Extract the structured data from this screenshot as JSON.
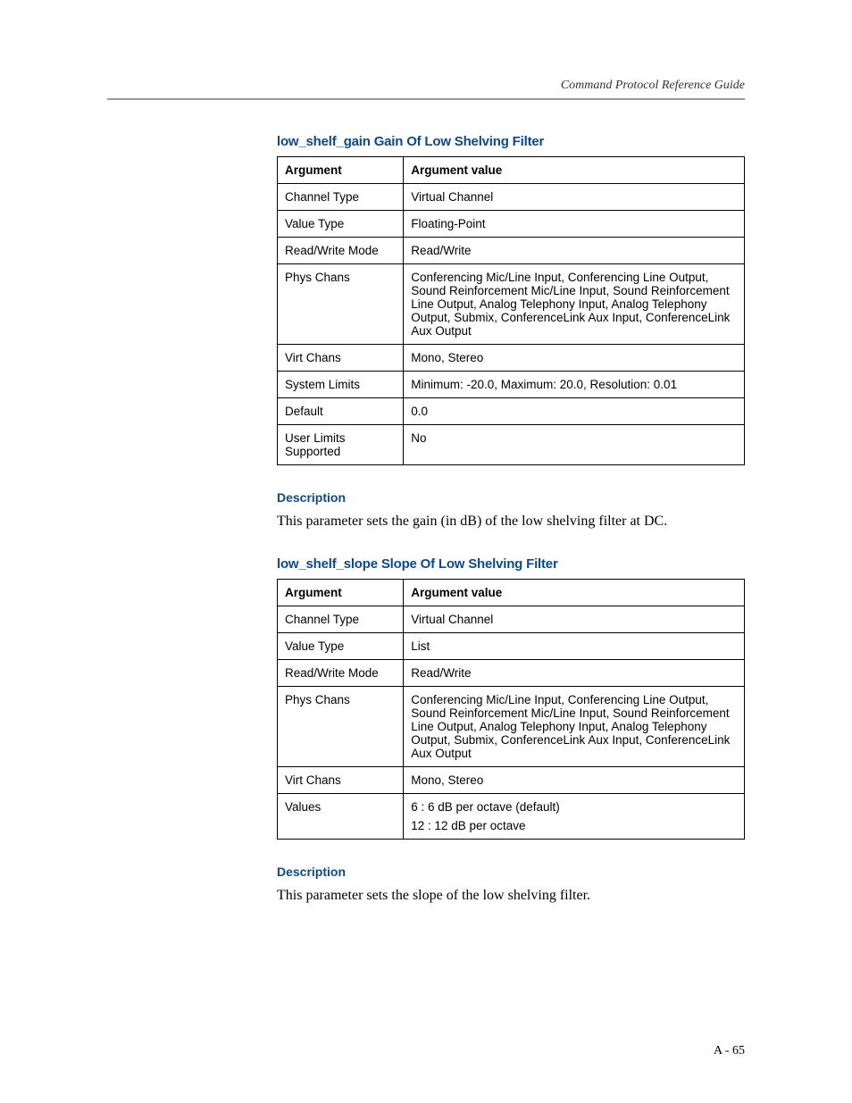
{
  "meta": {
    "header": "Command Protocol Reference Guide",
    "page_number": "A - 65"
  },
  "colors": {
    "heading": "#0b4a8a",
    "rule": "#999999",
    "text": "#000000"
  },
  "section1": {
    "title": "low_shelf_gain Gain Of Low Shelving Filter",
    "header_col1": "Argument",
    "header_col2": "Argument value",
    "rows": {
      "r0": {
        "k": "Channel Type",
        "v": "Virtual Channel"
      },
      "r1": {
        "k": "Value Type",
        "v": "Floating-Point"
      },
      "r2": {
        "k": "Read/Write Mode",
        "v": "Read/Write"
      },
      "r3": {
        "k": "Phys Chans",
        "v": "Conferencing Mic/Line Input, Conferencing Line Output, Sound Reinforcement Mic/Line Input, Sound Reinforcement Line Output, Analog Telephony Input, Analog Telephony Output, Submix, ConferenceLink Aux Input, ConferenceLink Aux Output"
      },
      "r4": {
        "k": "Virt Chans",
        "v": "Mono, Stereo"
      },
      "r5": {
        "k": "System Limits",
        "v": "Minimum: -20.0, Maximum: 20.0, Resolution: 0.01"
      },
      "r6": {
        "k": "Default",
        "v": "0.0"
      },
      "r7": {
        "k": "User Limits Supported",
        "v": "No"
      }
    },
    "desc_heading": "Description",
    "desc": "This parameter sets the gain (in dB) of the low shelving filter at DC."
  },
  "section2": {
    "title": "low_shelf_slope Slope Of Low Shelving Filter",
    "header_col1": "Argument",
    "header_col2": "Argument value",
    "rows": {
      "r0": {
        "k": "Channel Type",
        "v": "Virtual Channel"
      },
      "r1": {
        "k": "Value Type",
        "v": "List"
      },
      "r2": {
        "k": "Read/Write Mode",
        "v": "Read/Write"
      },
      "r3": {
        "k": "Phys Chans",
        "v": "Conferencing Mic/Line Input, Conferencing Line Output, Sound Reinforcement Mic/Line Input, Sound Reinforcement Line Output, Analog Telephony Input, Analog Telephony Output, Submix, ConferenceLink Aux Input, ConferenceLink Aux Output"
      },
      "r4": {
        "k": "Virt Chans",
        "v": "Mono, Stereo"
      },
      "r5": {
        "k": "Values",
        "v0": "6 : 6 dB per octave (default)",
        "v1": "12 : 12 dB per octave"
      }
    },
    "desc_heading": "Description",
    "desc": "This parameter sets the slope of the low shelving filter."
  }
}
